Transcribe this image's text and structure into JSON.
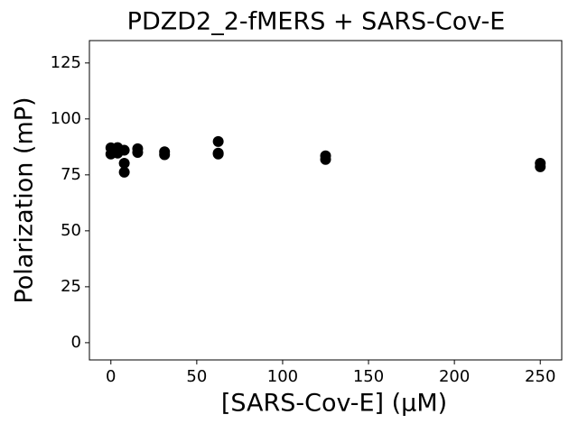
{
  "chart_data": {
    "type": "scatter",
    "title": "PDZD2_2-fMERS + SARS-Cov-E",
    "xlabel": "[SARS-Cov-E] (μM)",
    "ylabel": "Polarization (mP)",
    "series": [
      {
        "color": "#000000",
        "x": [
          0,
          0,
          1.95,
          3.9,
          3.9,
          7.8,
          7.8,
          7.8,
          15.6,
          15.6,
          31.25,
          31.25,
          62.5,
          62.5,
          62.5,
          125,
          125,
          250,
          250
        ],
        "values": [
          87.1,
          84.3,
          85.5,
          87.2,
          84.7,
          86,
          80.2,
          76.2,
          86.7,
          85,
          85.3,
          84,
          89.9,
          84.7,
          84.3,
          83.5,
          81.9,
          80.2,
          78.6
        ]
      }
    ],
    "xlim": [
      -12.5,
      262.5
    ],
    "ylim": [
      -7.7,
      135
    ],
    "xticks": [
      0,
      50,
      100,
      150,
      200,
      250
    ],
    "yticks": [
      0,
      25,
      50,
      75,
      100,
      125
    ]
  }
}
